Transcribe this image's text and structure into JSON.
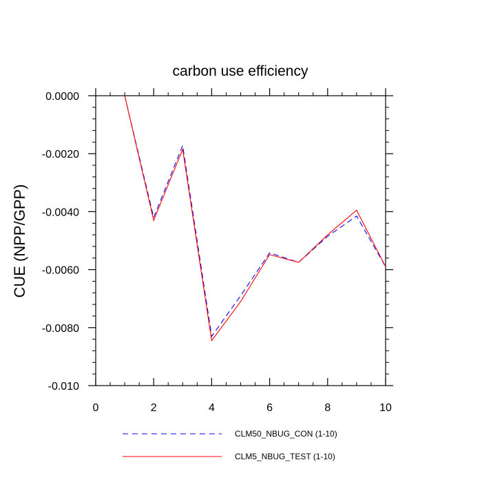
{
  "chart_data": {
    "type": "line",
    "title": "carbon use efficiency",
    "xlabel": "",
    "ylabel": "CUE  (NPP/GPP)",
    "xlim": [
      0,
      10
    ],
    "ylim": [
      -0.01,
      0.0
    ],
    "x_ticks": [
      0,
      2,
      4,
      6,
      8,
      10
    ],
    "x_tick_labels": [
      "0",
      "2",
      "4",
      "6",
      "8",
      "10"
    ],
    "y_ticks": [
      0.0,
      -0.002,
      -0.004,
      -0.006,
      -0.008,
      -0.01
    ],
    "y_tick_labels": [
      "0.0000",
      "-0.0020",
      "-0.0040",
      "-0.0060",
      "-0.0080",
      "-0.010"
    ],
    "grid": false,
    "legend_position": "bottom",
    "x": [
      1,
      2,
      3,
      4,
      5,
      6,
      7,
      8,
      9,
      10
    ],
    "series": [
      {
        "name": "CLM50_NBUG_CON (1-10)",
        "color": "#0000ff",
        "dash": "dashed",
        "values": [
          0.0,
          -0.0042,
          -0.00172,
          -0.0083,
          -0.0069,
          -0.00542,
          -0.00575,
          -0.00485,
          -0.00415,
          -0.0059
        ]
      },
      {
        "name": "CLM5_NBUG_TEST (1-10)",
        "color": "#ff0000",
        "dash": "solid",
        "values": [
          0.0,
          -0.0043,
          -0.00185,
          -0.00845,
          -0.0071,
          -0.00548,
          -0.00575,
          -0.0048,
          -0.00395,
          -0.0059
        ]
      }
    ]
  }
}
